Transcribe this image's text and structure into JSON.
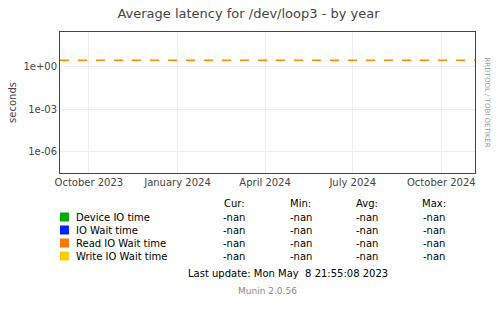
{
  "chart_data": {
    "type": "line",
    "title": "Average latency for /dev/loop3 - by year",
    "ylabel": "seconds",
    "log": "y",
    "grid": true,
    "x": [],
    "xlim": [
      1693526400,
      1730764800
    ],
    "xticks": [
      {
        "value": 1696118400,
        "label": "October 2023"
      },
      {
        "value": 1704067200,
        "label": "January 2024"
      },
      {
        "value": 1711929600,
        "label": "April 2024"
      },
      {
        "value": 1719792000,
        "label": "July 2024"
      },
      {
        "value": 1727740800,
        "label": "October 2024"
      }
    ],
    "ylim": [
      3e-08,
      300.0
    ],
    "yticks": [
      {
        "value": 1e-06,
        "label": "1e-06"
      },
      {
        "value": 0.001,
        "label": "1e-03"
      },
      {
        "value": 1.0,
        "label": "1e+00"
      }
    ],
    "hlines": [
      {
        "y": 3.0,
        "color": "#ff8800",
        "line_style": "dashed"
      }
    ],
    "stats_header": [
      "Cur:",
      "Min:",
      "Avg:",
      "Max:"
    ],
    "series": [
      {
        "name": "Device IO time",
        "color": "#00aa00",
        "values": [],
        "stats": [
          "-nan",
          "-nan",
          "-nan",
          "-nan"
        ]
      },
      {
        "name": "IO Wait time",
        "color": "#0022ff",
        "values": [],
        "stats": [
          "-nan",
          "-nan",
          "-nan",
          "-nan"
        ]
      },
      {
        "name": "Read IO Wait time",
        "color": "#ff7700",
        "values": [],
        "stats": [
          "-nan",
          "-nan",
          "-nan",
          "-nan"
        ]
      },
      {
        "name": "Write IO Wait time",
        "color": "#ffcc00",
        "values": [],
        "stats": [
          "-nan",
          "-nan",
          "-nan",
          "-nan"
        ]
      }
    ],
    "annotations": [
      "Last update: Mon May  8 21:55:08 2023",
      "Munin 2.0.56",
      "RRDTOOL / TOBI OETIKER"
    ]
  }
}
